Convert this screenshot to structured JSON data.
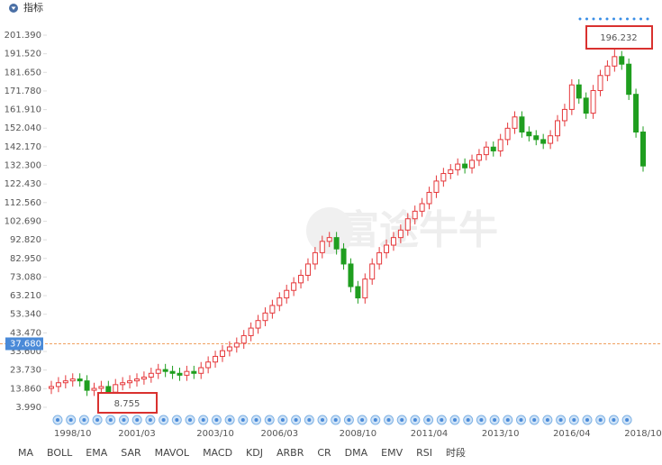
{
  "header": {
    "title": "指标"
  },
  "watermark": "富途牛牛",
  "chart_data": {
    "type": "candlestick",
    "categories": [
      null,
      null,
      null,
      "1998/10",
      null,
      null,
      null,
      null,
      null,
      null,
      null,
      null,
      "2001/03",
      null,
      null,
      null,
      null,
      null,
      null,
      null,
      null,
      null,
      null,
      "2003/10",
      null,
      null,
      null,
      null,
      null,
      null,
      null,
      null,
      "2006/03",
      null,
      null,
      null,
      null,
      null,
      null,
      null,
      null,
      null,
      null,
      "2008/10",
      null,
      null,
      null,
      null,
      null,
      null,
      null,
      null,
      null,
      "2011/04",
      null,
      null,
      null,
      null,
      null,
      null,
      null,
      null,
      null,
      "2013/10",
      null,
      null,
      null,
      null,
      null,
      null,
      null,
      null,
      null,
      "2016/04",
      null,
      null,
      null,
      null,
      null,
      null,
      null,
      null,
      null,
      "2018/10"
    ],
    "open": [
      14,
      15,
      17,
      18,
      19,
      18,
      13,
      14,
      15,
      12,
      16,
      17,
      18,
      19,
      20,
      22,
      24,
      23,
      22,
      21,
      23,
      22,
      25,
      28,
      31,
      34,
      36,
      38,
      42,
      46,
      50,
      54,
      58,
      62,
      66,
      70,
      74,
      80,
      86,
      92,
      94,
      88,
      80,
      68,
      62,
      72,
      80,
      86,
      90,
      94,
      98,
      104,
      108,
      112,
      118,
      124,
      128,
      130,
      133,
      131,
      135,
      138,
      142,
      140,
      146,
      152,
      158,
      150,
      148,
      146,
      144,
      148,
      156,
      162,
      175,
      168,
      160,
      172,
      180,
      185,
      190,
      186,
      170,
      150
    ],
    "high": [
      18,
      20,
      21,
      22,
      22,
      21,
      17,
      18,
      18,
      19,
      20,
      21,
      22,
      23,
      25,
      27,
      27,
      26,
      25,
      26,
      26,
      28,
      31,
      34,
      37,
      39,
      41,
      45,
      49,
      53,
      57,
      61,
      65,
      69,
      73,
      77,
      83,
      89,
      95,
      97,
      97,
      91,
      83,
      71,
      75,
      83,
      89,
      93,
      97,
      101,
      107,
      111,
      115,
      121,
      127,
      131,
      133,
      136,
      136,
      138,
      141,
      145,
      145,
      149,
      155,
      161,
      161,
      153,
      151,
      149,
      151,
      159,
      165,
      178,
      178,
      171,
      175,
      183,
      188,
      196.232,
      193,
      189,
      173,
      153
    ],
    "low": [
      11,
      12,
      14,
      15,
      15,
      10,
      10,
      11,
      8.755,
      9,
      13,
      14,
      15,
      16,
      17,
      19,
      20,
      19,
      18,
      18,
      19,
      19,
      22,
      25,
      28,
      31,
      33,
      35,
      39,
      43,
      47,
      51,
      55,
      59,
      63,
      67,
      71,
      77,
      83,
      89,
      85,
      77,
      65,
      59,
      59,
      69,
      77,
      83,
      87,
      91,
      95,
      101,
      105,
      109,
      115,
      121,
      125,
      127,
      128,
      128,
      132,
      135,
      137,
      137,
      143,
      149,
      147,
      145,
      143,
      141,
      141,
      145,
      153,
      159,
      165,
      157,
      157,
      169,
      177,
      182,
      183,
      167,
      147,
      129
    ],
    "close": [
      15,
      17,
      18,
      19,
      18,
      13,
      14,
      15,
      12,
      16,
      17,
      18,
      19,
      20,
      22,
      24,
      23,
      22,
      21,
      23,
      22,
      25,
      28,
      31,
      34,
      36,
      38,
      42,
      46,
      50,
      54,
      58,
      62,
      66,
      70,
      74,
      80,
      86,
      92,
      94,
      88,
      80,
      68,
      62,
      72,
      80,
      86,
      90,
      94,
      98,
      104,
      108,
      112,
      118,
      124,
      128,
      130,
      133,
      131,
      135,
      138,
      142,
      140,
      146,
      152,
      158,
      150,
      148,
      146,
      144,
      148,
      156,
      162,
      175,
      168,
      160,
      172,
      180,
      185,
      190,
      186,
      170,
      150,
      132
    ],
    "up_color": "#e5383b",
    "down_color": "#1f9e1f",
    "ylim": [
      0,
      210
    ],
    "yticks": [
      {
        "value": 3.99,
        "label": "3.990"
      },
      {
        "value": 13.86,
        "label": "13.860"
      },
      {
        "value": 23.73,
        "label": "23.730"
      },
      {
        "value": 33.6,
        "label": "33.600"
      },
      {
        "value": 43.47,
        "label": "43.470"
      },
      {
        "value": 53.34,
        "label": "53.340"
      },
      {
        "value": 63.21,
        "label": "63.210"
      },
      {
        "value": 73.08,
        "label": "73.080"
      },
      {
        "value": 82.95,
        "label": "82.950"
      },
      {
        "value": 92.82,
        "label": "92.820"
      },
      {
        "value": 102.69,
        "label": "102.690"
      },
      {
        "value": 112.56,
        "label": "112.560"
      },
      {
        "value": 122.43,
        "label": "122.430"
      },
      {
        "value": 132.3,
        "label": "132.300"
      },
      {
        "value": 142.17,
        "label": "142.170"
      },
      {
        "value": 152.04,
        "label": "152.040"
      },
      {
        "value": 161.91,
        "label": "161.910"
      },
      {
        "value": 171.78,
        "label": "171.780"
      },
      {
        "value": 181.65,
        "label": "181.650"
      },
      {
        "value": 191.52,
        "label": "191.520"
      },
      {
        "value": 201.39,
        "label": "201.390"
      }
    ],
    "current_price": {
      "value": 37.68,
      "label": "37.680"
    },
    "max_index": 79,
    "min_index": 8
  },
  "tabs": [
    "MA",
    "BOLL",
    "EMA",
    "SAR",
    "MAVOL",
    "MACD",
    "KDJ",
    "ARBR",
    "CR",
    "DMA",
    "EMV",
    "RSI",
    "时段"
  ]
}
